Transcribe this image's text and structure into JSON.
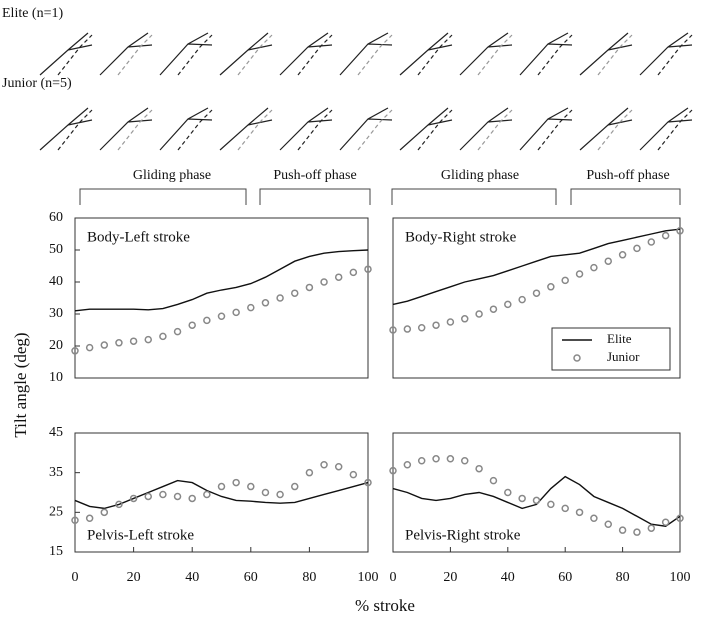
{
  "figure": {
    "rows": [
      "Elite (n=1)",
      "Junior (n=5)"
    ],
    "phases": [
      "Gliding phase",
      "Push-off phase",
      "Gliding phase",
      "Push-off phase"
    ],
    "ylabel": "Tilt angle (deg)",
    "xlabel": "% stroke"
  },
  "chart_data": [
    {
      "type": "line",
      "title": "Body-Left stroke",
      "x": [
        0,
        5,
        10,
        15,
        20,
        25,
        30,
        35,
        40,
        45,
        50,
        55,
        60,
        65,
        70,
        75,
        80,
        85,
        90,
        95,
        100
      ],
      "xlim": [
        0,
        100
      ],
      "ylim": [
        10,
        60
      ],
      "yticks": [
        10,
        20,
        30,
        40,
        50,
        60
      ],
      "series": [
        {
          "name": "Elite",
          "color": "#111111",
          "style": "line",
          "values": [
            31,
            31.5,
            31.5,
            31.5,
            31.5,
            31.3,
            31.7,
            33,
            34.5,
            36.5,
            37.5,
            38.3,
            39.5,
            41.5,
            44,
            46.5,
            48,
            49,
            49.5,
            49.8,
            50
          ]
        },
        {
          "name": "Junior",
          "color": "#888888",
          "style": "circle",
          "values": [
            18.5,
            19.5,
            20.3,
            21,
            21.5,
            22,
            23,
            24.5,
            26.5,
            28,
            29.3,
            30.5,
            32,
            33.5,
            35,
            36.5,
            38.3,
            40,
            41.5,
            43,
            44
          ]
        }
      ]
    },
    {
      "type": "line",
      "title": "Body-Right stroke",
      "x": [
        0,
        5,
        10,
        15,
        20,
        25,
        30,
        35,
        40,
        45,
        50,
        55,
        60,
        65,
        70,
        75,
        80,
        85,
        90,
        95,
        100
      ],
      "xlim": [
        0,
        100
      ],
      "ylim": [
        10,
        60
      ],
      "legend": "lower right",
      "series": [
        {
          "name": "Elite",
          "color": "#111111",
          "style": "line",
          "values": [
            33,
            34,
            35.5,
            37,
            38.5,
            40,
            41,
            42,
            43.5,
            45,
            46.5,
            48,
            48.5,
            49,
            50.5,
            52,
            53,
            54,
            55,
            56,
            56.5
          ]
        },
        {
          "name": "Junior",
          "color": "#888888",
          "style": "circle",
          "values": [
            25,
            25.3,
            25.7,
            26.5,
            27.5,
            28.5,
            30,
            31.5,
            33,
            34.5,
            36.5,
            38.5,
            40.5,
            42.5,
            44.5,
            46.5,
            48.5,
            50.5,
            52.5,
            54.5,
            56
          ]
        }
      ]
    },
    {
      "type": "line",
      "title": "Pelvis-Left stroke",
      "x": [
        0,
        5,
        10,
        15,
        20,
        25,
        30,
        35,
        40,
        45,
        50,
        55,
        60,
        65,
        70,
        75,
        80,
        85,
        90,
        95,
        100
      ],
      "xlim": [
        0,
        100
      ],
      "ylim": [
        15,
        45
      ],
      "yticks": [
        15,
        25,
        35,
        45
      ],
      "xticks": [
        0,
        20,
        40,
        60,
        80,
        100
      ],
      "series": [
        {
          "name": "Elite",
          "color": "#111111",
          "style": "line",
          "values": [
            28,
            26.5,
            26,
            27,
            28.5,
            30,
            31.5,
            33,
            32.5,
            30.5,
            29,
            28,
            27.8,
            27.5,
            27.3,
            27.5,
            28.5,
            29.5,
            30.5,
            31.5,
            32.5
          ]
        },
        {
          "name": "Junior",
          "color": "#888888",
          "style": "circle",
          "values": [
            23,
            23.5,
            25,
            27,
            28.5,
            29,
            29.5,
            29,
            28.5,
            29.5,
            31.5,
            32.5,
            31.5,
            30,
            29.5,
            31.5,
            35,
            37,
            36.5,
            34.5,
            32.5
          ]
        }
      ]
    },
    {
      "type": "line",
      "title": "Pelvis-Right stroke",
      "x": [
        0,
        5,
        10,
        15,
        20,
        25,
        30,
        35,
        40,
        45,
        50,
        55,
        60,
        65,
        70,
        75,
        80,
        85,
        90,
        95,
        100
      ],
      "xlim": [
        0,
        100
      ],
      "ylim": [
        15,
        45
      ],
      "xticks": [
        0,
        20,
        40,
        60,
        80,
        100
      ],
      "series": [
        {
          "name": "Elite",
          "color": "#111111",
          "style": "line",
          "values": [
            31,
            30,
            28.5,
            28,
            28.5,
            29.5,
            30,
            29,
            27.5,
            26,
            27,
            31,
            34,
            32,
            29,
            27.5,
            26,
            24,
            22,
            21.5,
            24
          ]
        },
        {
          "name": "Junior",
          "color": "#888888",
          "style": "circle",
          "values": [
            35.5,
            37,
            38,
            38.5,
            38.5,
            38,
            36,
            33,
            30,
            28.5,
            28,
            27,
            26,
            25,
            23.5,
            22,
            20.5,
            20,
            21,
            22.5,
            23.5
          ]
        }
      ]
    }
  ]
}
